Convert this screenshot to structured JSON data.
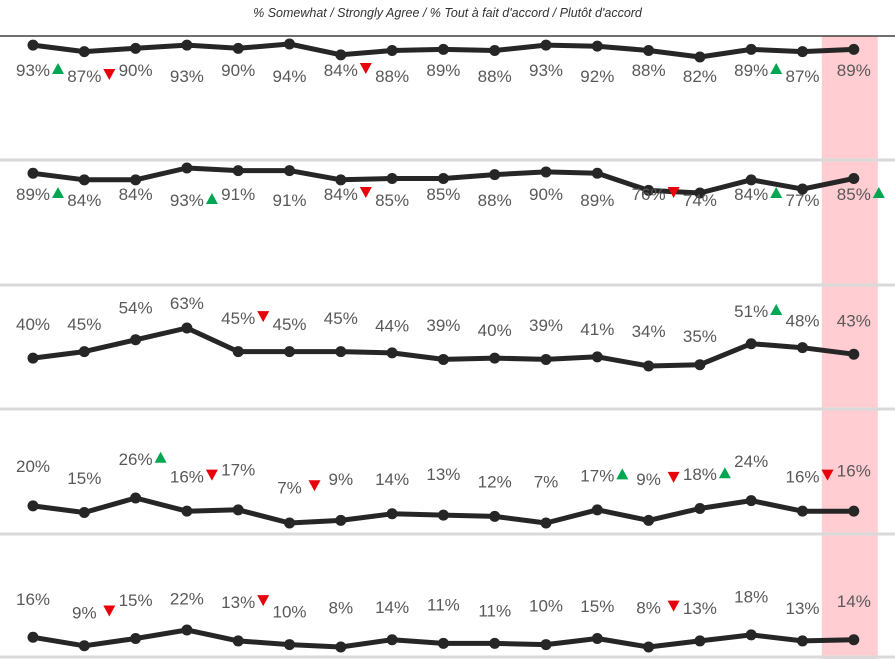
{
  "subtitle": "% Somewhat / Strongly Agree / % Tout à fait d'accord / Plutôt d'accord",
  "colors": {
    "line": "#262626",
    "label": "#595959",
    "highlight": "#ffcdd2",
    "separator": "#d9d9d9",
    "up": "#00a651",
    "down": "#e8000b"
  },
  "chart_data": [
    {
      "type": "line",
      "values": [
        93,
        87,
        90,
        93,
        90,
        94,
        84,
        88,
        89,
        88,
        93,
        92,
        88,
        82,
        89,
        87,
        89
      ],
      "labels": [
        "93%",
        "87%",
        "90%",
        "93%",
        "90%",
        "94%",
        "84%",
        "88%",
        "89%",
        "88%",
        "93%",
        "92%",
        "88%",
        "82%",
        "89%",
        "87%",
        "89%"
      ],
      "markers": [
        "up",
        "down",
        "",
        "",
        "",
        "",
        "down",
        "",
        "",
        "",
        "",
        "",
        "",
        "",
        "up",
        "",
        ""
      ],
      "highlight_index": 16
    },
    {
      "type": "line",
      "values": [
        89,
        84,
        84,
        93,
        91,
        91,
        84,
        85,
        85,
        88,
        90,
        89,
        76,
        74,
        84,
        77,
        85
      ],
      "labels": [
        "89%",
        "84%",
        "84%",
        "93%",
        "91%",
        "91%",
        "84%",
        "85%",
        "85%",
        "88%",
        "90%",
        "89%",
        "76%",
        "74%",
        "84%",
        "77%",
        "85%"
      ],
      "markers": [
        "up",
        "",
        "",
        "up",
        "",
        "",
        "down",
        "",
        "",
        "",
        "",
        "",
        "down",
        "",
        "up",
        "",
        "up"
      ],
      "highlight_index": 16
    },
    {
      "type": "line",
      "values": [
        40,
        45,
        54,
        63,
        45,
        45,
        45,
        44,
        39,
        40,
        39,
        41,
        34,
        35,
        51,
        48,
        43
      ],
      "labels": [
        "40%",
        "45%",
        "54%",
        "63%",
        "45%",
        "45%",
        "45%",
        "44%",
        "39%",
        "40%",
        "39%",
        "41%",
        "34%",
        "35%",
        "51%",
        "48%",
        "43%"
      ],
      "markers": [
        "",
        "",
        "",
        "",
        "down",
        "",
        "",
        "",
        "",
        "",
        "",
        "",
        "",
        "",
        "up",
        "",
        ""
      ],
      "highlight_index": 16
    },
    {
      "type": "line",
      "values": [
        20,
        15,
        26,
        16,
        17,
        7,
        9,
        14,
        13,
        12,
        7,
        17,
        9,
        18,
        24,
        16,
        16
      ],
      "labels": [
        "20%",
        "15%",
        "26%",
        "16%",
        "17%",
        "7%",
        "9%",
        "14%",
        "13%",
        "12%",
        "7%",
        "17%",
        "9%",
        "18%",
        "24%",
        "16%",
        "16%"
      ],
      "markers": [
        "",
        "",
        "up",
        "down",
        "",
        "down",
        "",
        "",
        "",
        "",
        "",
        "up",
        "down",
        "up",
        "",
        "down",
        ""
      ],
      "highlight_index": 16
    },
    {
      "type": "line",
      "values": [
        16,
        9,
        15,
        22,
        13,
        10,
        8,
        14,
        11,
        11,
        10,
        15,
        8,
        13,
        18,
        13,
        14
      ],
      "labels": [
        "16%",
        "9%",
        "15%",
        "22%",
        "13%",
        "10%",
        "8%",
        "14%",
        "11%",
        "11%",
        "10%",
        "15%",
        "8%",
        "13%",
        "18%",
        "13%",
        "14%"
      ],
      "markers": [
        "",
        "down",
        "",
        "",
        "down",
        "",
        "",
        "",
        "",
        "",
        "",
        "",
        "down",
        "",
        "",
        "",
        ""
      ],
      "highlight_index": 16
    }
  ]
}
